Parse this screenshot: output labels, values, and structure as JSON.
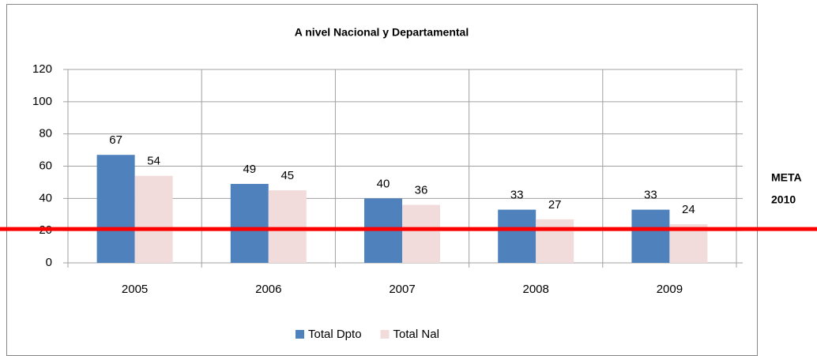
{
  "chart_data": {
    "type": "bar",
    "title": "A nivel Nacional y Departamental",
    "categories": [
      "2005",
      "2006",
      "2007",
      "2008",
      "2009"
    ],
    "series": [
      {
        "name": "Total Dpto",
        "color": "#4f81bd",
        "values": [
          67,
          49,
          40,
          33,
          33
        ]
      },
      {
        "name": "Total Nal",
        "color": "#f2dcdb",
        "values": [
          54,
          45,
          36,
          27,
          24
        ]
      }
    ],
    "ylim": [
      0,
      120
    ],
    "yticks": [
      0,
      20,
      40,
      60,
      80,
      100,
      120
    ],
    "grid": true,
    "target": {
      "value": 21,
      "color": "#ff0000",
      "label_lines": [
        "META",
        "2010"
      ]
    },
    "legend": "bottom"
  }
}
